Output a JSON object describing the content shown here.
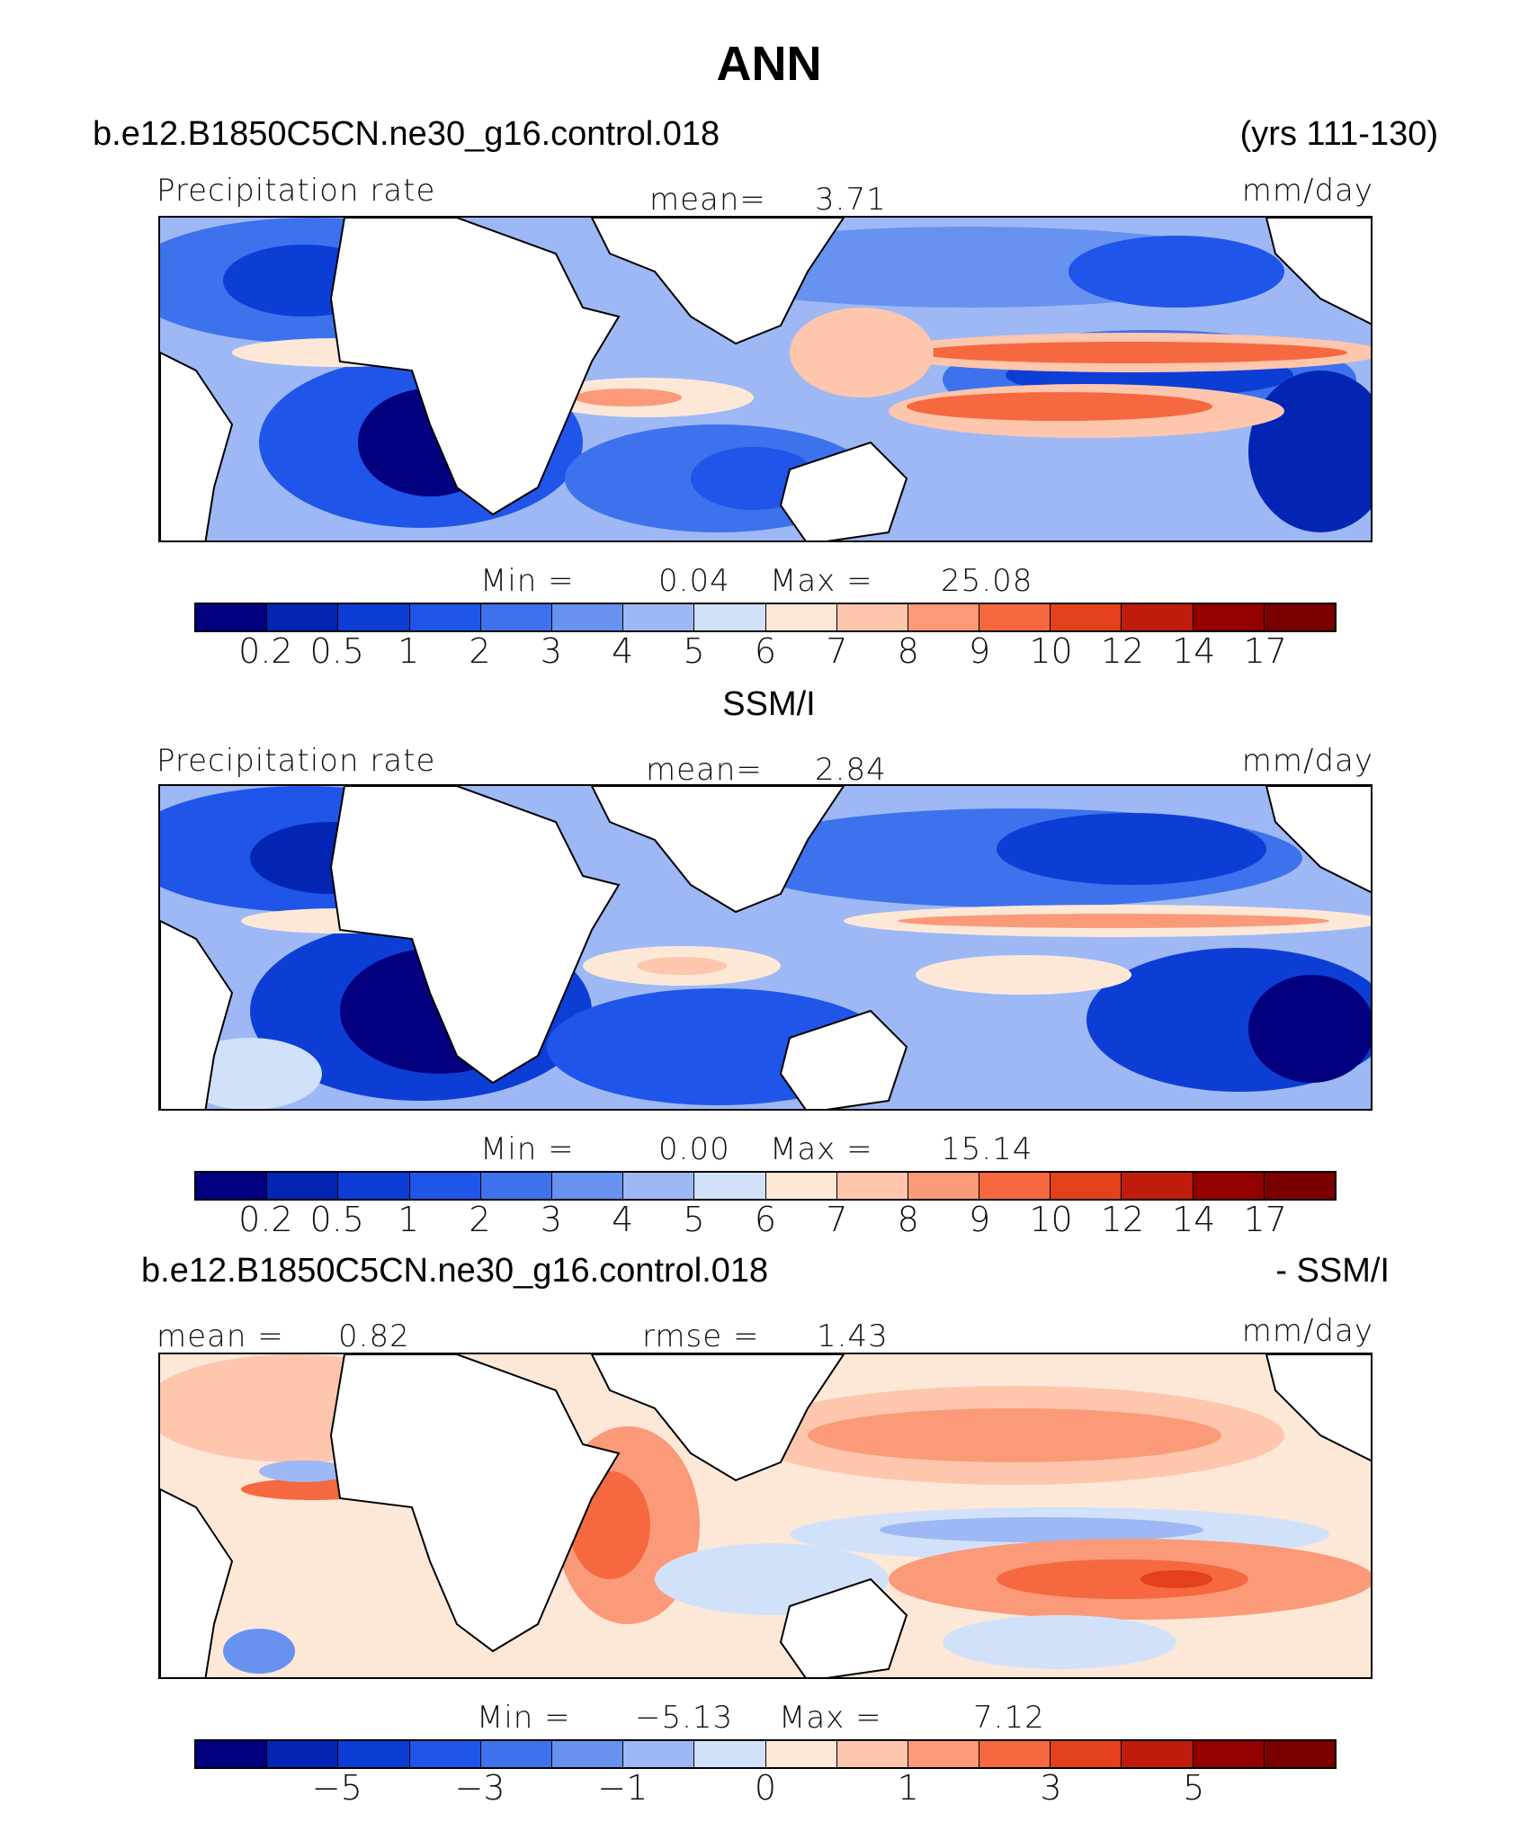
{
  "title": "ANN",
  "panel1": {
    "case_label": "b.e12.B1850C5CN.ne30_g16.control.018",
    "years_label": "(yrs 111-130)",
    "variable": "Precipitation rate",
    "mean_label": "mean=",
    "mean_value": "3.71",
    "units": "mm/day",
    "min_label": "Min  =",
    "min_value": "0.04",
    "max_label": "Max  =",
    "max_value": "25.08",
    "ticks": [
      "0.2",
      "0.5",
      "1",
      "2",
      "3",
      "4",
      "5",
      "6",
      "7",
      "8",
      "9",
      "10",
      "12",
      "14",
      "17"
    ]
  },
  "panel2": {
    "obs_title": "SSM/I",
    "variable": "Precipitation rate",
    "mean_label": "mean=",
    "mean_value": "2.84",
    "units": "mm/day",
    "min_label": "Min  =",
    "min_value": "0.00",
    "max_label": "Max  =",
    "max_value": "15.14",
    "ticks": [
      "0.2",
      "0.5",
      "1",
      "2",
      "3",
      "4",
      "5",
      "6",
      "7",
      "8",
      "9",
      "10",
      "12",
      "14",
      "17"
    ]
  },
  "panel3": {
    "case_label": "b.e12.B1850C5CN.ne30_g16.control.018",
    "diff_label": "- SSM/I",
    "mean_label": "mean  =",
    "mean_value": "0.82",
    "rmse_label": "rmse  =",
    "rmse_value": "1.43",
    "units": "mm/day",
    "min_label": "Min  =",
    "min_value": "−5.13",
    "max_label": "Max  =",
    "max_value": "7.12",
    "ticks": [
      "−5",
      "−3",
      "−1",
      "0",
      "1",
      "3",
      "5"
    ]
  },
  "colorbar_colors": [
    "#02007f",
    "#0325b4",
    "#0c3ed5",
    "#1f55e8",
    "#3d72ec",
    "#6892f0",
    "#9db8f5",
    "#d2e1fa",
    "#fde8d8",
    "#fdc6ad",
    "#fb9a78",
    "#f6683f",
    "#e3401c",
    "#c01c0c",
    "#930000",
    "#7a0000"
  ]
}
